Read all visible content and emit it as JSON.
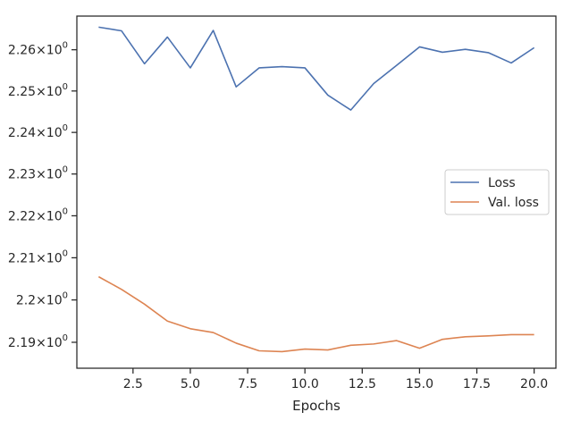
{
  "chart_data": {
    "type": "line",
    "title": "",
    "xlabel": "Epochs",
    "ylabel": "",
    "yscale": "log",
    "xlim": [
      0.05,
      20.95
    ],
    "ylim": [
      2.1839,
      2.2682
    ],
    "x_ticks": [
      2.5,
      5.0,
      7.5,
      10.0,
      12.5,
      15.0,
      17.5,
      20.0
    ],
    "x_tick_labels": [
      "2.5",
      "5.0",
      "7.5",
      "10.0",
      "12.5",
      "15.0",
      "17.5",
      "20.0"
    ],
    "y_ticks": [
      2.19,
      2.2,
      2.21,
      2.22,
      2.23,
      2.24,
      2.25,
      2.26
    ],
    "y_tick_labels": [
      {
        "base": "2.19",
        "exp": "0"
      },
      {
        "base": "2.2",
        "exp": "0"
      },
      {
        "base": "2.21",
        "exp": "0"
      },
      {
        "base": "2.22",
        "exp": "0"
      },
      {
        "base": "2.23",
        "exp": "0"
      },
      {
        "base": "2.24",
        "exp": "0"
      },
      {
        "base": "2.25",
        "exp": "0"
      },
      {
        "base": "2.26",
        "exp": "0"
      }
    ],
    "grid": false,
    "legend_position": "center-right",
    "x": [
      1,
      2,
      3,
      4,
      5,
      6,
      7,
      8,
      9,
      10,
      11,
      12,
      13,
      14,
      15,
      16,
      17,
      18,
      19,
      20
    ],
    "series": [
      {
        "name": "Loss",
        "color": "#4c72b0",
        "values": [
          2.2655,
          2.2646,
          2.2566,
          2.2631,
          2.2556,
          2.2647,
          2.251,
          2.2556,
          2.2559,
          2.2556,
          2.249,
          2.2454,
          2.2518,
          2.2562,
          2.2607,
          2.2594,
          2.2601,
          2.2593,
          2.2568,
          2.2605
        ]
      },
      {
        "name": "Val. loss",
        "color": "#dd8452",
        "values": [
          2.2055,
          2.2025,
          2.199,
          2.195,
          2.1932,
          2.1923,
          2.1898,
          2.188,
          2.1878,
          2.1884,
          2.1882,
          2.1893,
          2.1896,
          2.1904,
          2.1886,
          2.1907,
          2.1913,
          2.1915,
          2.1918,
          2.1918
        ]
      }
    ]
  }
}
